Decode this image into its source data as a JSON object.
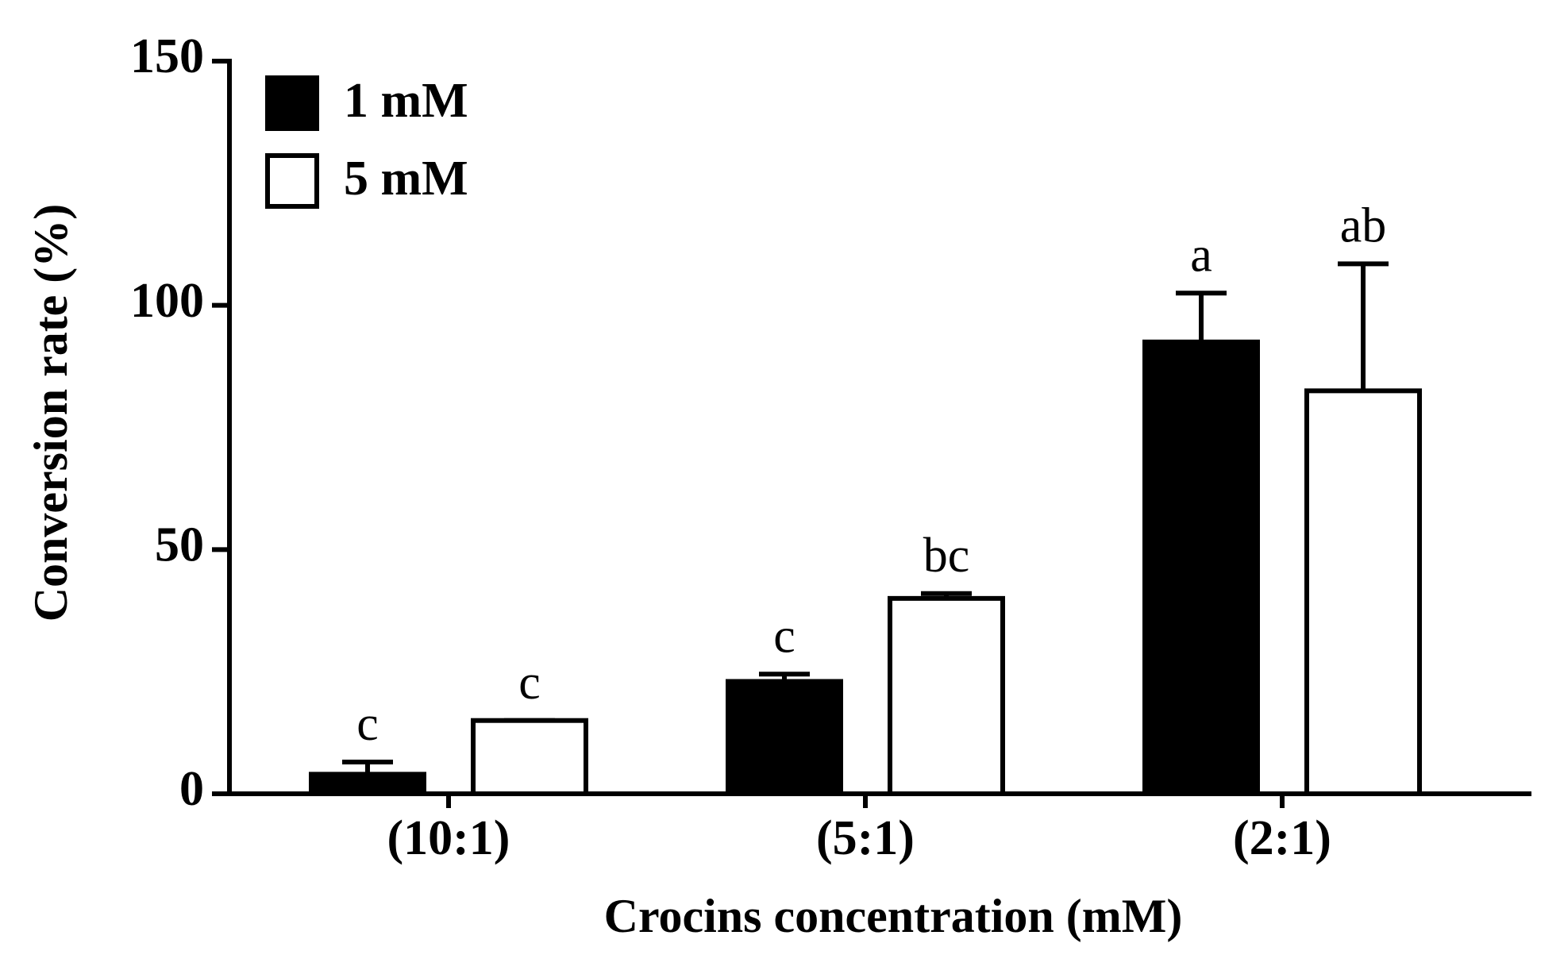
{
  "chart_data": {
    "type": "bar",
    "x_label": "Crocins concentration (mM)",
    "y_label": "Conversion rate (%)",
    "categories": [
      "(10:1)",
      "(5:1)",
      "(2:1)"
    ],
    "series": [
      {
        "name": "1 mM",
        "color": "#000000",
        "values": [
          4,
          23,
          92.5
        ],
        "errors": [
          2.5,
          1.5,
          10
        ],
        "labels": [
          "c",
          "c",
          "a"
        ]
      },
      {
        "name": "5 mM",
        "color": "#ffffff",
        "values": [
          15,
          40,
          82.5
        ],
        "errors": [
          0,
          1,
          26
        ],
        "labels": [
          "c",
          "bc",
          "ab"
        ]
      }
    ],
    "ylim": [
      0,
      150
    ],
    "yticks": [
      0,
      50,
      100,
      150
    ],
    "grid": false,
    "legend": "top-left"
  }
}
